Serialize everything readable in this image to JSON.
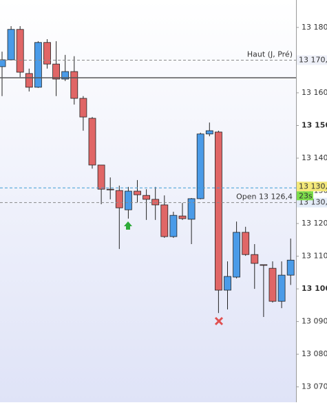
{
  "chart_data": {
    "type": "candlestick",
    "up_color": "#4a9be8",
    "down_color": "#e06666",
    "open": [
      13168,
      13170.1,
      13179.4,
      13165.9,
      13161.7,
      13175.4,
      13168.8,
      13164.2,
      13166.5,
      13158.3,
      13152.2,
      13137.9,
      13130.5,
      13130.1,
      13124.2,
      13129.9,
      13128.6,
      13127.4,
      13125.7,
      13116,
      13122.3,
      13121.3,
      13127.6,
      13147.4,
      13148,
      13099.6,
      13103.6,
      13117.3,
      13110.5,
      13107.4,
      13106.3,
      13096.2,
      13104.2
    ],
    "high": [
      13172.6,
      13180.4,
      13180.4,
      13167.4,
      13175.8,
      13176.4,
      13175.8,
      13171.6,
      13171.2,
      13159,
      13152.6,
      13137.9,
      13134.1,
      13131.6,
      13131.2,
      13133.3,
      13130.5,
      13131.2,
      13128.6,
      13123.6,
      13126.3,
      13127.8,
      13147.8,
      13150.9,
      13148.4,
      13108.4,
      13120.6,
      13119,
      13113.7,
      13107.4,
      13108.4,
      13108.4,
      13115.4
    ],
    "low": [
      13159,
      13169.9,
      13164.8,
      13160.4,
      13161.5,
      13167.4,
      13159,
      13163.6,
      13156.4,
      13148.4,
      13136.8,
      13125.9,
      13127.4,
      13112.2,
      13121.5,
      13126.5,
      13121.1,
      13121.1,
      13115.6,
      13115.6,
      13121.1,
      13113.7,
      13127.4,
      13146.7,
      13092.6,
      13093.7,
      13103.2,
      13110.1,
      13100,
      13091.4,
      13095.8,
      13094.1,
      13101.2
    ],
    "close": [
      13170.1,
      13179.4,
      13166.3,
      13161.7,
      13175.4,
      13168.8,
      13164.2,
      13166.5,
      13158.3,
      13152.6,
      13137.9,
      13130.5,
      13130.4,
      13124.8,
      13129.9,
      13128.8,
      13127.4,
      13125.7,
      13116,
      13122.5,
      13121.5,
      13127.6,
      13147.4,
      13148.4,
      13099.6,
      13103.8,
      13117.3,
      13110.5,
      13107.8,
      13107.2,
      13096.2,
      13104.2,
      13108.8
    ],
    "ylim": [
      13065.3,
      13188.4
    ],
    "yticks": [
      {
        "value": 13070,
        "label": "13 070"
      },
      {
        "value": 13080,
        "label": "13 080"
      },
      {
        "value": 13090,
        "label": "13 090"
      },
      {
        "value": 13100,
        "label": "13 100",
        "bold": true
      },
      {
        "value": 13110,
        "label": "13 110"
      },
      {
        "value": 13120,
        "label": "13 120"
      },
      {
        "value": 13130,
        "label": "13 130"
      },
      {
        "value": 13140,
        "label": "13 140"
      },
      {
        "value": 13150,
        "label": "13 150",
        "bold": true
      },
      {
        "value": 13160,
        "label": "13 160"
      },
      {
        "value": 13170,
        "label": "13 170"
      },
      {
        "value": 13180,
        "label": "13 180"
      }
    ],
    "reference_lines": [
      {
        "value": 13170,
        "label": "Haut (J, Pré)",
        "axis_label": "13 170,",
        "style": "dashed",
        "color": "#888888",
        "label_bg": "#eef0f8"
      },
      {
        "value": 13164.6,
        "style": "solid",
        "color": "#555555"
      },
      {
        "value": 13126.4,
        "label": "Open 13 126,4",
        "axis_label": "13 130,",
        "style": "dashed",
        "color": "#888888",
        "label_bg": "#e4ecf8"
      },
      {
        "value": 13130.9,
        "axis_label": "13 130,",
        "badge": "23s",
        "style": "dashed",
        "color": "#3a9bd5",
        "label_bg": "#f4e97a"
      }
    ]
  }
}
